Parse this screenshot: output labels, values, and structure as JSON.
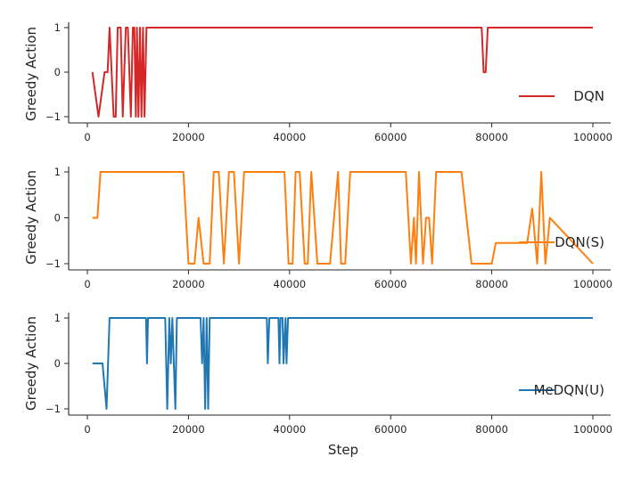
{
  "chart_data": [
    {
      "type": "line",
      "ylabel": "Greedy Action",
      "xlabel": "",
      "xlim": [
        0,
        100000
      ],
      "ylim": [
        -1,
        1
      ],
      "xticks": [
        "0",
        "20000",
        "40000",
        "60000",
        "80000",
        "100000"
      ],
      "yticks": [
        "−1",
        "0",
        "1"
      ],
      "legend_position": "right",
      "series": [
        {
          "name": "DQN",
          "color": "#d62728",
          "x": [
            1000,
            2200,
            3400,
            4000,
            4400,
            5200,
            5600,
            6000,
            6600,
            7000,
            7600,
            8000,
            8600,
            9000,
            9300,
            9600,
            9800,
            10100,
            10400,
            10700,
            11000,
            11300,
            11700,
            12000,
            78000,
            78400,
            78800,
            79200,
            100000
          ],
          "y": [
            0,
            -1,
            0,
            0,
            1,
            -1,
            -1,
            1,
            1,
            -1,
            1,
            1,
            -1,
            1,
            1,
            -1,
            1,
            -1,
            1,
            -1,
            1,
            -1,
            1,
            1,
            1,
            0,
            0,
            1,
            1
          ]
        }
      ]
    },
    {
      "type": "line",
      "ylabel": "Greedy Action",
      "xlabel": "",
      "xlim": [
        0,
        100000
      ],
      "ylim": [
        -1,
        1
      ],
      "xticks": [
        "0",
        "20000",
        "40000",
        "60000",
        "80000",
        "100000"
      ],
      "yticks": [
        "−1",
        "0",
        "1"
      ],
      "legend_position": "right",
      "series": [
        {
          "name": "DQN(S)",
          "color": "#ff7f0e",
          "x": [
            1000,
            2000,
            2600,
            19000,
            20000,
            21200,
            22000,
            23000,
            24200,
            25000,
            26000,
            27000,
            28000,
            29000,
            30000,
            31000,
            39000,
            39800,
            40600,
            41200,
            42000,
            43000,
            43600,
            44300,
            45500,
            48000,
            49600,
            50200,
            51000,
            52000,
            63000,
            64000,
            64600,
            65000,
            65600,
            66400,
            67000,
            67600,
            68200,
            69000,
            74000,
            76000,
            80000,
            80800,
            87000,
            88000,
            89000,
            89800,
            90600,
            91500,
            100000
          ],
          "y": [
            0,
            0,
            1,
            1,
            -1,
            -1,
            0,
            -1,
            -1,
            1,
            1,
            -1,
            1,
            1,
            -1,
            1,
            1,
            -1,
            -1,
            1,
            1,
            -1,
            -1,
            1,
            -1,
            -1,
            1,
            -1,
            -1,
            1,
            1,
            -1,
            0,
            -1,
            1,
            -1,
            0,
            0,
            -1,
            1,
            1,
            -1,
            -1,
            -0.55,
            -0.55,
            0.2,
            -1,
            1,
            -1,
            0,
            -1
          ]
        }
      ]
    },
    {
      "type": "line",
      "ylabel": "Greedy Action",
      "xlabel": "Step",
      "xlim": [
        0,
        100000
      ],
      "ylim": [
        -1,
        1
      ],
      "xticks": [
        "0",
        "20000",
        "40000",
        "60000",
        "80000",
        "100000"
      ],
      "yticks": [
        "−1",
        "0",
        "1"
      ],
      "legend_position": "right",
      "series": [
        {
          "name": "MeDQN(U)",
          "color": "#1f77b4",
          "x": [
            1000,
            3000,
            3800,
            4400,
            11600,
            11800,
            12000,
            15400,
            15800,
            16200,
            16500,
            16800,
            17100,
            17400,
            17700,
            18000,
            22400,
            22700,
            23000,
            23300,
            23600,
            23900,
            24200,
            35500,
            35700,
            36000,
            37800,
            38000,
            38200,
            38600,
            38800,
            39200,
            39400,
            39700,
            100000
          ],
          "y": [
            0,
            0,
            -1,
            1,
            1,
            0,
            1,
            1,
            -1,
            1,
            0,
            1,
            0,
            -1,
            1,
            1,
            1,
            0,
            1,
            -1,
            1,
            -1,
            1,
            1,
            0,
            1,
            1,
            0,
            1,
            1,
            0,
            1,
            0,
            1,
            1
          ]
        }
      ]
    }
  ]
}
